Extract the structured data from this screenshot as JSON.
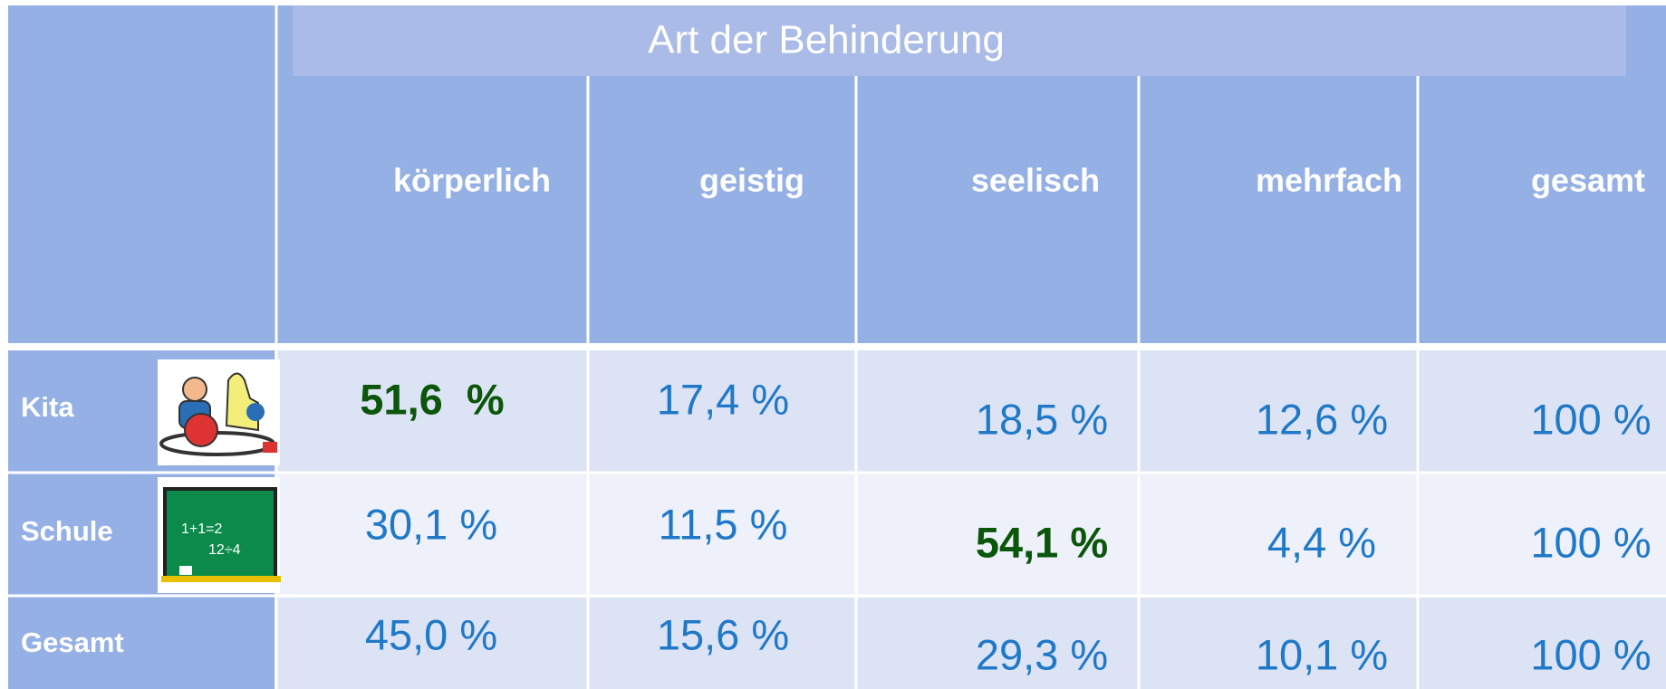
{
  "table": {
    "title": "Art der Behinderung",
    "columns": [
      "körperlich",
      "geistig",
      "seelisch",
      "mehrfach",
      "gesamt"
    ],
    "rows": [
      {
        "label": "Kita",
        "cells": [
          "51,6  %",
          "17,4 %",
          "18,5 %",
          "12,6 %",
          "100 %"
        ]
      },
      {
        "label": "Schule",
        "cells": [
          "30,1 %",
          "11,5 %",
          "54,1 %",
          "4,4 %",
          "100 %"
        ]
      },
      {
        "label": "Gesamt",
        "cells": [
          "45,0 %",
          "15,6 %",
          "29,3 %",
          "10,1 %",
          "100 %"
        ]
      }
    ]
  }
}
